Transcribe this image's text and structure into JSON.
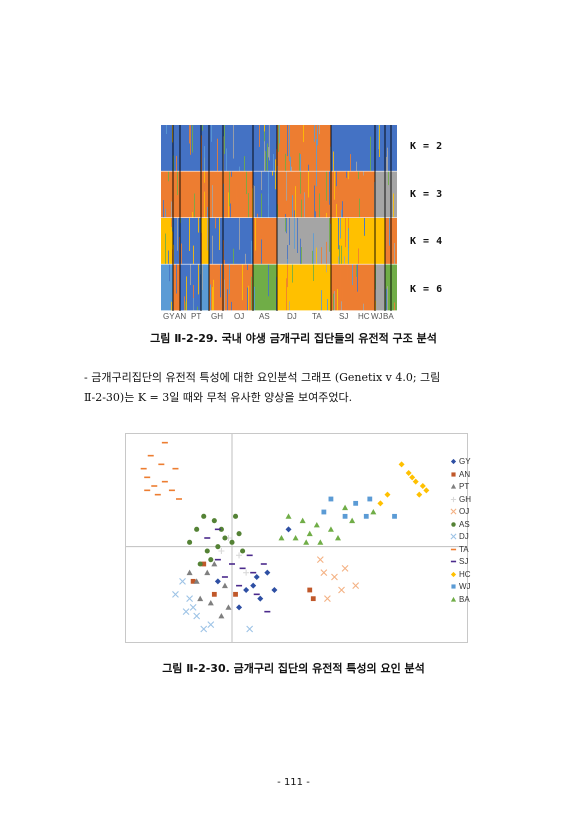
{
  "figure1": {
    "k_labels": [
      "K = 2",
      "K = 3",
      "K = 4",
      "K = 6"
    ],
    "population_labels": [
      "GY",
      "AN",
      "PT",
      "GH",
      "OJ",
      "AS",
      "DJ",
      "TA",
      "SJ",
      "HC",
      "WJ",
      "BA"
    ],
    "caption": "그림 Ⅱ-2-29. 국내 야생 금개구리 집단들의 유전적 구조 분석",
    "cluster_colors": {
      "blue": "#4472c4",
      "orange": "#ed7d31",
      "gray": "#a5a5a5",
      "yellow": "#ffc000",
      "lightblue": "#5b9bd5",
      "green": "#70ad47"
    }
  },
  "paragraph": {
    "line1": "- 금개구리집단의 유전적 특성에 대한 요인분석 그래프 (Genetix v 4.0; 그림",
    "line2": "Ⅱ-2-30)는 K = 3일 때와 무척 유사한 양상을 보여주었다."
  },
  "chart_data": {
    "type": "scatter",
    "title": "",
    "xlabel": "",
    "ylabel": "",
    "grid": false,
    "legend_position": "right",
    "series": [
      {
        "name": "GY",
        "marker": "diamond",
        "color": "#2e4fa3",
        "points": [
          [
            -0.2,
            -0.4
          ],
          [
            0.2,
            -0.5
          ],
          [
            0.3,
            -0.45
          ],
          [
            0.4,
            -0.6
          ],
          [
            0.1,
            -0.7
          ],
          [
            0.5,
            -0.3
          ],
          [
            0.6,
            -0.5
          ],
          [
            0.8,
            0.2
          ],
          [
            0.35,
            -0.35
          ]
        ]
      },
      {
        "name": "AN",
        "marker": "square",
        "color": "#c0582a",
        "points": [
          [
            -0.4,
            -0.2
          ],
          [
            -0.55,
            -0.4
          ],
          [
            -0.25,
            -0.55
          ],
          [
            1.1,
            -0.5
          ],
          [
            1.15,
            -0.6
          ],
          [
            0.05,
            -0.55
          ]
        ]
      },
      {
        "name": "PT",
        "marker": "triangle",
        "color": "#7f7f7f",
        "points": [
          [
            -0.5,
            -0.4
          ],
          [
            -0.45,
            -0.6
          ],
          [
            -0.3,
            -0.65
          ],
          [
            -0.15,
            -0.8
          ],
          [
            -0.35,
            -0.3
          ],
          [
            -0.1,
            -0.45
          ],
          [
            -0.05,
            -0.7
          ],
          [
            -0.25,
            -0.2
          ],
          [
            -0.6,
            -0.3
          ]
        ]
      },
      {
        "name": "GH",
        "marker": "cross",
        "color": "#d9d9d9",
        "points": [
          [
            -0.05,
            0.1
          ],
          [
            0.1,
            -0.1
          ],
          [
            -0.15,
            -0.05
          ],
          [
            0.2,
            -0.3
          ]
        ]
      },
      {
        "name": "OJ",
        "marker": "x",
        "color": "#f4b183",
        "points": [
          [
            1.3,
            -0.3
          ],
          [
            1.45,
            -0.35
          ],
          [
            1.6,
            -0.25
          ],
          [
            1.75,
            -0.45
          ],
          [
            1.55,
            -0.5
          ],
          [
            1.25,
            -0.15
          ],
          [
            1.35,
            -0.6
          ]
        ]
      },
      {
        "name": "AS",
        "marker": "circle",
        "color": "#548235",
        "points": [
          [
            -0.5,
            0.2
          ],
          [
            -0.4,
            0.35
          ],
          [
            -0.25,
            0.3
          ],
          [
            -0.1,
            0.1
          ],
          [
            0.0,
            0.05
          ],
          [
            -0.2,
            0.0
          ],
          [
            -0.35,
            -0.05
          ],
          [
            -0.6,
            0.05
          ],
          [
            0.1,
            0.15
          ],
          [
            -0.3,
            -0.15
          ],
          [
            0.05,
            0.35
          ],
          [
            -0.45,
            -0.2
          ],
          [
            0.15,
            -0.05
          ],
          [
            -0.15,
            0.2
          ]
        ]
      },
      {
        "name": "DJ",
        "marker": "x",
        "color": "#9dc3e6",
        "points": [
          [
            -0.6,
            -0.6
          ],
          [
            -0.7,
            -0.4
          ],
          [
            -0.5,
            -0.8
          ],
          [
            -0.8,
            -0.55
          ],
          [
            -0.55,
            -0.7
          ],
          [
            -0.65,
            -0.75
          ],
          [
            -0.3,
            -0.9
          ],
          [
            0.25,
            -0.95
          ],
          [
            -0.4,
            -0.95
          ]
        ]
      },
      {
        "name": "TA",
        "marker": "dash",
        "color": "#ed7d31",
        "points": [
          [
            -1.15,
            1.05
          ],
          [
            -1.0,
            0.95
          ],
          [
            -0.95,
            0.75
          ],
          [
            -1.2,
            0.8
          ],
          [
            -0.85,
            0.65
          ],
          [
            -1.05,
            0.6
          ],
          [
            -0.8,
            0.9
          ],
          [
            -1.25,
            0.9
          ],
          [
            -0.95,
            1.2
          ],
          [
            -1.1,
            0.7
          ],
          [
            -0.75,
            0.55
          ],
          [
            -1.2,
            0.65
          ]
        ]
      },
      {
        "name": "SJ",
        "marker": "dash",
        "color": "#4b2a8c",
        "points": [
          [
            -0.2,
            -0.15
          ],
          [
            0.0,
            -0.2
          ],
          [
            0.15,
            -0.25
          ],
          [
            0.3,
            -0.3
          ],
          [
            -0.1,
            -0.35
          ],
          [
            0.25,
            -0.1
          ],
          [
            0.45,
            -0.2
          ],
          [
            -0.35,
            0.1
          ],
          [
            0.1,
            -0.45
          ],
          [
            0.5,
            -0.75
          ],
          [
            0.35,
            -0.55
          ],
          [
            -0.2,
            0.2
          ]
        ]
      },
      {
        "name": "HC",
        "marker": "diamond",
        "color": "#ffc000",
        "points": [
          [
            2.5,
            0.85
          ],
          [
            2.6,
            0.75
          ],
          [
            2.7,
            0.7
          ],
          [
            2.65,
            0.6
          ],
          [
            2.75,
            0.65
          ],
          [
            2.55,
            0.8
          ],
          [
            2.4,
            0.95
          ],
          [
            2.2,
            0.6
          ],
          [
            2.1,
            0.5
          ]
        ]
      },
      {
        "name": "WJ",
        "marker": "square",
        "color": "#5b9bd5",
        "points": [
          [
            1.3,
            0.4
          ],
          [
            1.6,
            0.35
          ],
          [
            1.9,
            0.35
          ],
          [
            2.3,
            0.35
          ],
          [
            1.4,
            0.55
          ],
          [
            1.75,
            0.5
          ],
          [
            1.95,
            0.55
          ]
        ]
      },
      {
        "name": "BA",
        "marker": "triangle",
        "color": "#70ad47",
        "points": [
          [
            0.8,
            0.35
          ],
          [
            1.0,
            0.3
          ],
          [
            1.1,
            0.15
          ],
          [
            1.2,
            0.25
          ],
          [
            1.05,
            0.05
          ],
          [
            0.9,
            0.1
          ],
          [
            1.25,
            0.05
          ],
          [
            1.4,
            0.2
          ],
          [
            1.5,
            0.1
          ],
          [
            1.7,
            0.3
          ],
          [
            2.0,
            0.4
          ],
          [
            0.7,
            0.1
          ],
          [
            1.6,
            0.45
          ]
        ]
      }
    ]
  },
  "figure2": {
    "caption": "그림 Ⅱ-2-30. 금개구리 집단의 유전적 특성의 요인 분석"
  },
  "page": {
    "number": "- 111 -"
  }
}
